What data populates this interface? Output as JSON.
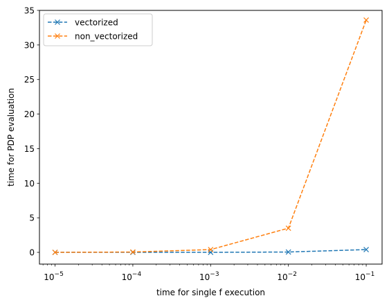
{
  "chart_data": {
    "type": "line",
    "title": "",
    "xlabel": "time for single f execution",
    "ylabel": "time for PDP evaluation",
    "x_scale": "log",
    "x": [
      1e-05,
      0.0001,
      0.001,
      0.01,
      0.1
    ],
    "xlim": [
      6.3e-06,
      0.16
    ],
    "ylim": [
      -1.7,
      35
    ],
    "x_ticks": [
      {
        "base": "10",
        "exp": "−5",
        "value": 1e-05
      },
      {
        "base": "10",
        "exp": "−4",
        "value": 0.0001
      },
      {
        "base": "10",
        "exp": "−3",
        "value": 0.001
      },
      {
        "base": "10",
        "exp": "−2",
        "value": 0.01
      },
      {
        "base": "10",
        "exp": "−1",
        "value": 0.1
      }
    ],
    "y_ticks": [
      "0",
      "5",
      "10",
      "15",
      "20",
      "25",
      "30",
      "35"
    ],
    "grid": false,
    "legend_position": "top-left",
    "series": [
      {
        "name": "vectorized",
        "color": "#1f77b4",
        "marker": "x",
        "linestyle": "dashed",
        "values": [
          0.0,
          0.0,
          0.0,
          0.05,
          0.4
        ]
      },
      {
        "name": "non_vectorized",
        "color": "#ff7f0e",
        "marker": "x",
        "linestyle": "dashed",
        "values": [
          0.0,
          0.05,
          0.4,
          3.5,
          33.6
        ]
      }
    ]
  }
}
